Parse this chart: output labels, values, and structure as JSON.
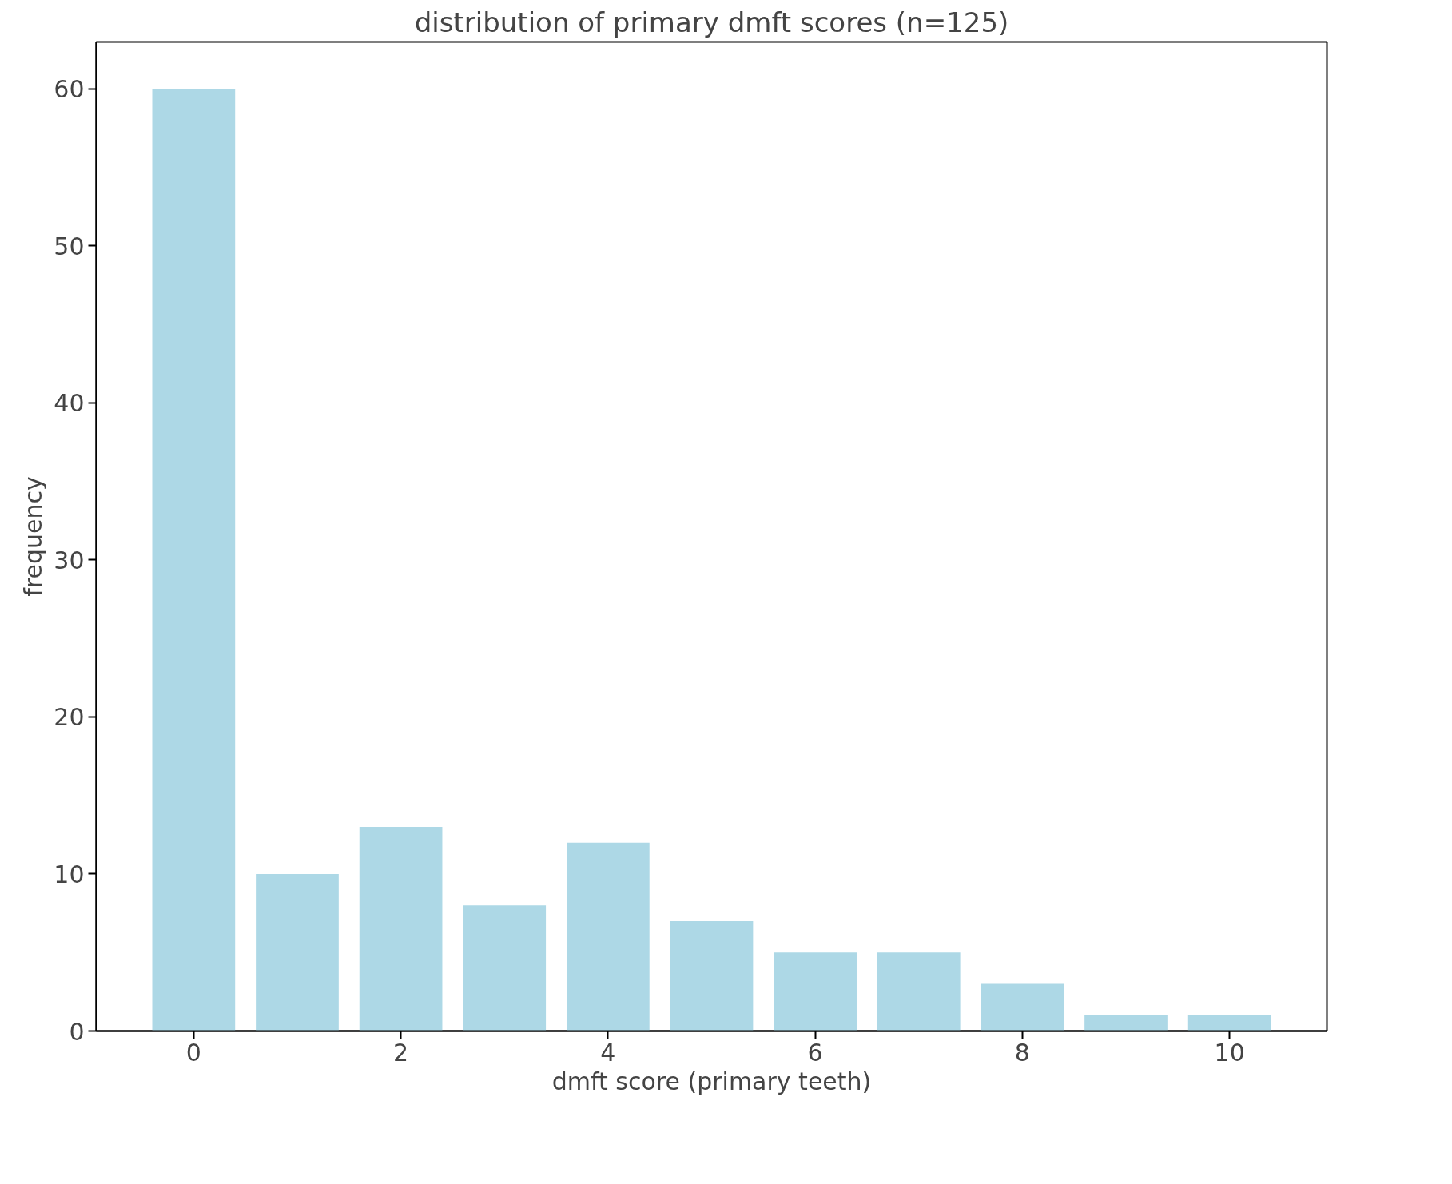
{
  "chart_data": {
    "type": "bar",
    "title": "distribution of primary dmft scores (n=125)",
    "xlabel": "dmft score (primary teeth)",
    "ylabel": "frequency",
    "x": [
      0,
      1,
      2,
      3,
      4,
      5,
      6,
      7,
      8,
      9,
      10
    ],
    "values": [
      60,
      10,
      13,
      8,
      12,
      7,
      5,
      5,
      3,
      1,
      1
    ],
    "color": "#add8e6",
    "xlim": [
      -0.94,
      10.94
    ],
    "ylim": [
      0,
      63
    ],
    "xticks": [
      0,
      2,
      4,
      6,
      8,
      10
    ],
    "yticks": [
      0,
      10,
      20,
      30,
      40,
      50,
      60
    ],
    "grid": false
  }
}
